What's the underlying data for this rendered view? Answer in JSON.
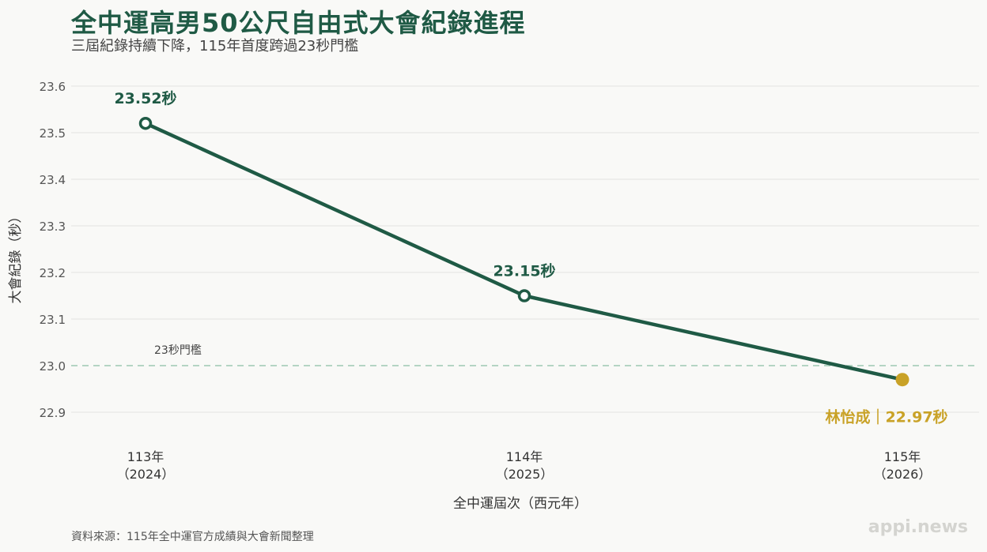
{
  "title": "全中運高男50公尺自由式大會紀錄進程",
  "subtitle": "三屆紀錄持續下降，115年首度跨過23秒門檻",
  "footer": "資料來源：115年全中運官方成績與大會新聞整理",
  "brand": "appi.news",
  "colors": {
    "line": "#1f5a45",
    "highlight": "#c9a227",
    "threshold": "#9ec8b2",
    "grid": "#e4e4e0"
  },
  "chart_data": {
    "type": "line",
    "title": "全中運高男50公尺自由式大會紀錄進程",
    "subtitle": "三屆紀錄持續下降，115年首度跨過23秒門檻",
    "xlabel": "全中運屆次（西元年）",
    "ylabel": "大會紀錄（秒）",
    "categories": [
      {
        "year": "113年",
        "ad": "（2024）"
      },
      {
        "year": "114年",
        "ad": "（2025）"
      },
      {
        "year": "115年",
        "ad": "（2026）"
      }
    ],
    "values": [
      23.52,
      23.15,
      22.97
    ],
    "data_labels": [
      "23.52秒",
      "23.15秒",
      "林怡成｜22.97秒"
    ],
    "ylim": [
      22.85,
      23.6
    ],
    "yticks": [
      22.9,
      23.0,
      23.1,
      23.2,
      23.3,
      23.4,
      23.5,
      23.6
    ],
    "grid": true,
    "threshold": {
      "value": 23.0,
      "label": "23秒門檻"
    },
    "highlight_index": 2
  }
}
